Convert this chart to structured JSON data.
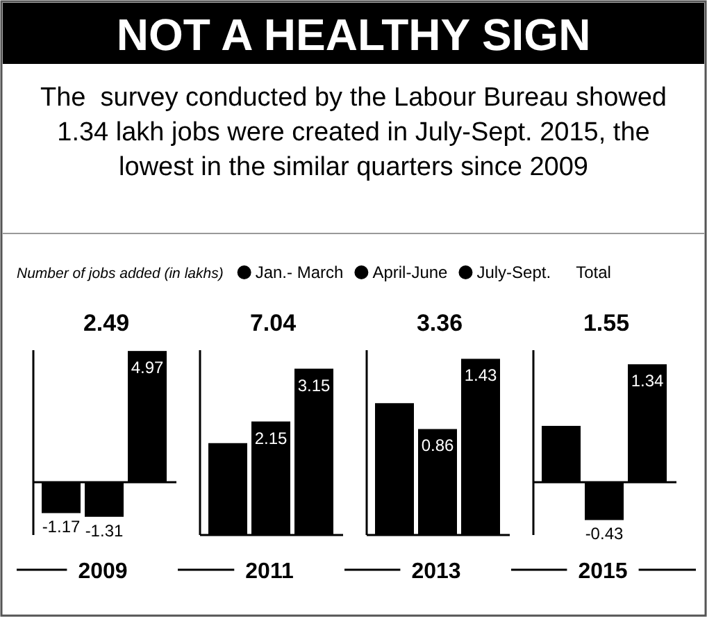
{
  "chart_data": [
    {
      "type": "bar",
      "title": "NOT A HEALTHY SIGN",
      "subtitle": "The  survey conducted by the Labour Bureau showed 1.34 lakh jobs were created in July-Sept. 2015, the lowest in the similar quarters since 2009",
      "legend_title": "Number of jobs added (in lakhs)",
      "legend": "top",
      "annotations": [
        "Total"
      ],
      "categories": [
        "2009"
      ],
      "ylim": [
        -2,
        5
      ],
      "totals": [
        "2.49"
      ],
      "series": [
        {
          "name": "Jan.- March",
          "color": "#000000",
          "values": [
            -1.17
          ],
          "value_labels": [
            "-1.17"
          ]
        },
        {
          "name": "April-June",
          "color": "#000000",
          "values": [
            -1.31
          ],
          "value_labels": [
            "-1.31"
          ]
        },
        {
          "name": "July-Sept.",
          "color": "#000000",
          "values": [
            4.97
          ],
          "value_labels": [
            "4.97"
          ]
        }
      ]
    },
    {
      "type": "bar",
      "categories": [
        "2011"
      ],
      "ylim": [
        0,
        3.5
      ],
      "totals": [
        "7.04"
      ],
      "series": [
        {
          "color": "#000000",
          "values": [
            1.74
          ],
          "value_labels": [
            null
          ]
        },
        {
          "color": "#000000",
          "values": [
            2.15
          ],
          "value_labels": [
            "2.15"
          ]
        },
        {
          "color": "#000000",
          "values": [
            3.15
          ],
          "value_labels": [
            "3.15"
          ]
        }
      ]
    },
    {
      "type": "bar",
      "categories": [
        "2013"
      ],
      "ylim": [
        0,
        1.5
      ],
      "totals": [
        "3.36"
      ],
      "series": [
        {
          "color": "#000000",
          "values": [
            1.07
          ],
          "value_labels": [
            null
          ]
        },
        {
          "color": "#000000",
          "values": [
            0.86
          ],
          "value_labels": [
            "0.86"
          ]
        },
        {
          "color": "#000000",
          "values": [
            1.43
          ],
          "value_labels": [
            "1.43"
          ]
        }
      ]
    },
    {
      "type": "bar",
      "categories": [
        "2015"
      ],
      "ylim": [
        -0.6,
        1.5
      ],
      "totals": [
        "1.55"
      ],
      "series": [
        {
          "color": "#000000",
          "values": [
            0.64
          ],
          "value_labels": [
            null
          ]
        },
        {
          "color": "#000000",
          "values": [
            -0.43
          ],
          "value_labels": [
            "-0.43"
          ]
        },
        {
          "color": "#000000",
          "values": [
            1.34
          ],
          "value_labels": [
            "1.34"
          ]
        }
      ]
    }
  ]
}
